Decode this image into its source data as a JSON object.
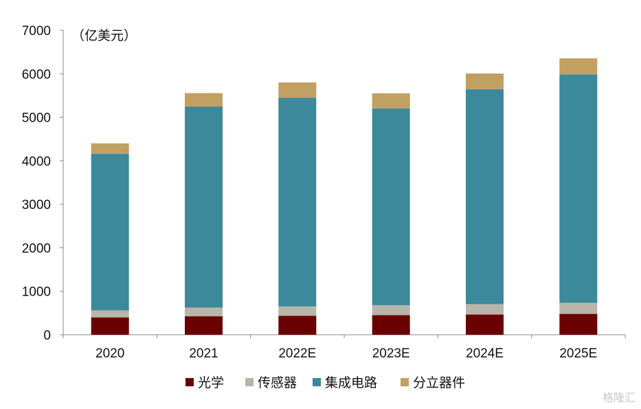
{
  "chart_data": {
    "type": "bar",
    "stacked": true,
    "unit_label": "（亿美元）",
    "categories": [
      "2020",
      "2021",
      "2022E",
      "2023E",
      "2024E",
      "2025E"
    ],
    "ylim": [
      0,
      7000
    ],
    "yticks": [
      0,
      1000,
      2000,
      3000,
      4000,
      5000,
      6000,
      7000
    ],
    "grid": false,
    "legend_position": "bottom",
    "series": [
      {
        "name": "光学",
        "color": "#6b0000",
        "values": [
          400,
          425,
          435,
          450,
          465,
          480
        ]
      },
      {
        "name": "传感器",
        "color": "#b8b6aa",
        "values": [
          160,
          200,
          215,
          230,
          240,
          255
        ]
      },
      {
        "name": "集成电路",
        "color": "#3d899c",
        "values": [
          3600,
          4620,
          4800,
          4520,
          4940,
          5250
        ]
      },
      {
        "name": "分立器件",
        "color": "#c2a062",
        "values": [
          240,
          310,
          350,
          350,
          360,
          370
        ]
      }
    ]
  },
  "watermark": "格隆汇"
}
